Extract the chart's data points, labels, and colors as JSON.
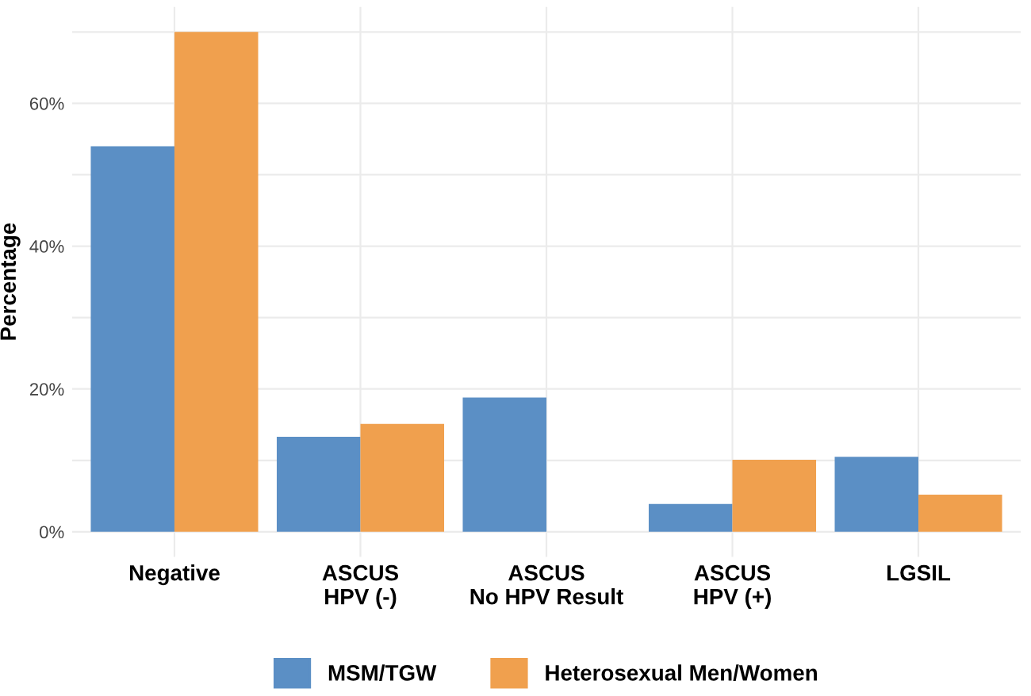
{
  "chart_data": {
    "type": "bar",
    "ylabel": "Percentage",
    "categories": [
      "Negative",
      "ASCUS\nHPV (-)",
      "ASCUS\nNo HPV Result",
      "ASCUS\nHPV (+)",
      "LGSIL"
    ],
    "series": [
      {
        "name": "MSM/TGW",
        "color": "#5b8fc5",
        "values": [
          54,
          13.3,
          18.8,
          3.9,
          10.5
        ]
      },
      {
        "name": "Heterosexual Men/Women",
        "color": "#f0a04e",
        "values": [
          70,
          15.1,
          0,
          10.1,
          5.2
        ]
      }
    ],
    "ylim": [
      -3.5,
      73.5
    ],
    "yticks": [
      {
        "value": 0,
        "label": "0%"
      },
      {
        "value": 10,
        "label": null
      },
      {
        "value": 20,
        "label": "20%"
      },
      {
        "value": 30,
        "label": null
      },
      {
        "value": 40,
        "label": "40%"
      },
      {
        "value": 50,
        "label": null
      },
      {
        "value": 60,
        "label": "60%"
      },
      {
        "value": 70,
        "label": null
      }
    ],
    "grid": true,
    "legend": "bottom"
  }
}
